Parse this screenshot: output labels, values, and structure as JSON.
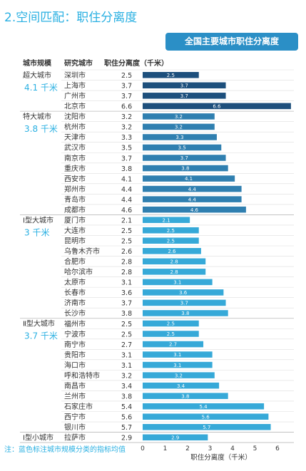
{
  "page_title": "2.空间匹配：职住分离度",
  "chart_title": "全国主要城市职住分离度",
  "headers": {
    "tier": "城市规模",
    "city": "研究城市",
    "value": "职住分离度（千米）"
  },
  "note": "注：蓝色标注城市规模分类的指标均值",
  "colors": {
    "title": "#2ab0e2",
    "title_box": "#2b8fc6",
    "bar_dark": "#1d4f7c",
    "bar_mid": "#2f7fb0",
    "bar_light": "#36a9d8",
    "grid": "#dddddd"
  },
  "chart_data": {
    "type": "bar",
    "orientation": "horizontal",
    "title": "全国主要城市职住分离度",
    "xlabel": "职住分离度（千米）",
    "xlim": [
      0,
      6.5
    ],
    "xticks": [
      0,
      1,
      2,
      3,
      4,
      5,
      6
    ],
    "tiers": [
      {
        "name": "超大城市",
        "avg": "4.1 千米",
        "cities": [
          {
            "city": "深圳市",
            "value": 2.5
          },
          {
            "city": "上海市",
            "value": 3.7
          },
          {
            "city": "广州市",
            "value": 3.7
          },
          {
            "city": "北京市",
            "value": 6.6
          }
        ]
      },
      {
        "name": "特大城市",
        "avg": "3.8 千米",
        "cities": [
          {
            "city": "沈阳市",
            "value": 3.2
          },
          {
            "city": "杭州市",
            "value": 3.2
          },
          {
            "city": "天津市",
            "value": 3.3
          },
          {
            "city": "武汉市",
            "value": 3.5
          },
          {
            "city": "南京市",
            "value": 3.7
          },
          {
            "city": "重庆市",
            "value": 3.8
          },
          {
            "city": "西安市",
            "value": 4.1
          },
          {
            "city": "郑州市",
            "value": 4.4
          },
          {
            "city": "青岛市",
            "value": 4.4
          },
          {
            "city": "成都市",
            "value": 4.6
          }
        ]
      },
      {
        "name": "Ⅰ型大城市",
        "avg": "3 千米",
        "cities": [
          {
            "city": "厦门市",
            "value": 2.1
          },
          {
            "city": "大连市",
            "value": 2.5
          },
          {
            "city": "昆明市",
            "value": 2.5
          },
          {
            "city": "乌鲁木齐市",
            "value": 2.6
          },
          {
            "city": "合肥市",
            "value": 2.8
          },
          {
            "city": "哈尔滨市",
            "value": 2.8
          },
          {
            "city": "太原市",
            "value": 3.1
          },
          {
            "city": "长春市",
            "value": 3.6
          },
          {
            "city": "济南市",
            "value": 3.7
          },
          {
            "city": "长沙市",
            "value": 3.8
          }
        ]
      },
      {
        "name": "Ⅱ型大城市",
        "avg": "3.7 千米",
        "cities": [
          {
            "city": "福州市",
            "value": 2.5
          },
          {
            "city": "宁波市",
            "value": 2.5
          },
          {
            "city": "南宁市",
            "value": 2.7
          },
          {
            "city": "贵阳市",
            "value": 3.1
          },
          {
            "city": "海口市",
            "value": 3.1
          },
          {
            "city": "呼和浩特市",
            "value": 3.2
          },
          {
            "city": "南昌市",
            "value": 3.4
          },
          {
            "city": "兰州市",
            "value": 3.8
          },
          {
            "city": "石家庄市",
            "value": 5.4
          },
          {
            "city": "西宁市",
            "value": 5.6
          },
          {
            "city": "银川市",
            "value": 5.7
          }
        ]
      },
      {
        "name": "Ⅰ型小城市",
        "avg": "",
        "cities": [
          {
            "city": "拉萨市",
            "value": 2.9
          }
        ]
      }
    ]
  }
}
